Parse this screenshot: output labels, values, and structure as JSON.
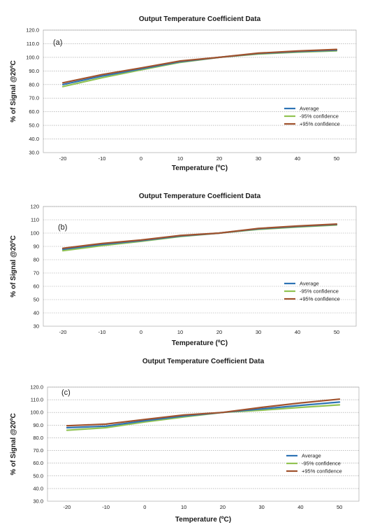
{
  "chart_data": [
    {
      "type": "line",
      "title": "Output Temperature Coefficient Data",
      "panel_label": "(a)",
      "xlabel": "Temperature (ºC)",
      "ylabel": "% of Signal @20ºC",
      "x": [
        -20,
        -10,
        0,
        10,
        20,
        30,
        40,
        50
      ],
      "x_ticks": [
        "-20",
        "-10",
        "0",
        "10",
        "20",
        "30",
        "40",
        "50"
      ],
      "xlim": [
        -25,
        55
      ],
      "ylim": [
        30,
        120
      ],
      "y_ticks": [
        "30.0",
        "40.0",
        "50.0",
        "60.0",
        "70.0",
        "80.0",
        "90.0",
        "100.0",
        "110.0",
        "120.0"
      ],
      "grid": "horizontal dashed",
      "legend_position": "right",
      "series": [
        {
          "name": "Average",
          "color": "#2e74b5",
          "values": [
            80.0,
            86.2,
            91.5,
            96.8,
            100.0,
            102.8,
            104.2,
            105.3
          ]
        },
        {
          "name": "-95% confidence",
          "color": "#92c353",
          "values": [
            78.5,
            85.0,
            90.8,
            96.3,
            100.0,
            102.4,
            103.8,
            104.8
          ]
        },
        {
          "name": "+95% confidence",
          "color": "#a0522d",
          "values": [
            81.3,
            87.3,
            92.2,
            97.3,
            100.0,
            103.1,
            104.6,
            105.8
          ]
        }
      ]
    },
    {
      "type": "line",
      "title": "Output Temperature Coefficient Data",
      "panel_label": "(b)",
      "xlabel": "Temperature (ºC)",
      "ylabel": "% of Signal @20ºC",
      "x": [
        -20,
        -10,
        0,
        10,
        20,
        30,
        40,
        50
      ],
      "x_ticks": [
        "-20",
        "-10",
        "0",
        "10",
        "20",
        "30",
        "40",
        "50"
      ],
      "xlim": [
        -25,
        55
      ],
      "ylim": [
        30,
        120
      ],
      "y_ticks": [
        "30",
        "40",
        "50",
        "60",
        "70",
        "80",
        "90",
        "100",
        "110",
        "120"
      ],
      "grid": "horizontal dashed",
      "legend_position": "right",
      "series": [
        {
          "name": "Average",
          "color": "#2e74b5",
          "values": [
            87.8,
            91.5,
            94.3,
            97.8,
            100.0,
            103.2,
            105.0,
            106.5
          ]
        },
        {
          "name": "-95% confidence",
          "color": "#92c353",
          "values": [
            86.8,
            90.6,
            93.8,
            97.4,
            100.0,
            102.8,
            104.6,
            106.1
          ]
        },
        {
          "name": "+95% confidence",
          "color": "#a0522d",
          "values": [
            88.6,
            92.2,
            94.8,
            98.2,
            100.0,
            103.5,
            105.3,
            106.8
          ]
        }
      ]
    },
    {
      "type": "line",
      "title": "Output Temperature Coefficient Data",
      "panel_label": "(c)",
      "xlabel": "Temperature (ºC)",
      "ylabel": "% of Signal @20ºC",
      "x": [
        -20,
        -10,
        0,
        10,
        20,
        30,
        40,
        50
      ],
      "x_ticks": [
        "-20",
        "-10",
        "0",
        "10",
        "20",
        "30",
        "40",
        "50"
      ],
      "xlim": [
        -25,
        55
      ],
      "ylim": [
        30,
        120
      ],
      "y_ticks": [
        "30.0",
        "40.0",
        "50.0",
        "60.0",
        "70.0",
        "80.0",
        "90.0",
        "100.0",
        "110.0",
        "120.0"
      ],
      "grid": "horizontal dashed",
      "legend_position": "right",
      "series": [
        {
          "name": "Average",
          "color": "#2e74b5",
          "values": [
            88.0,
            89.2,
            93.5,
            97.2,
            100.0,
            102.8,
            105.6,
            108.2
          ]
        },
        {
          "name": "-95% confidence",
          "color": "#92c353",
          "values": [
            86.0,
            88.0,
            92.5,
            96.4,
            100.0,
            101.8,
            104.0,
            106.0
          ]
        },
        {
          "name": "+95% confidence",
          "color": "#a0522d",
          "values": [
            89.5,
            90.8,
            94.5,
            98.0,
            100.0,
            104.0,
            107.5,
            110.5
          ]
        }
      ]
    }
  ]
}
